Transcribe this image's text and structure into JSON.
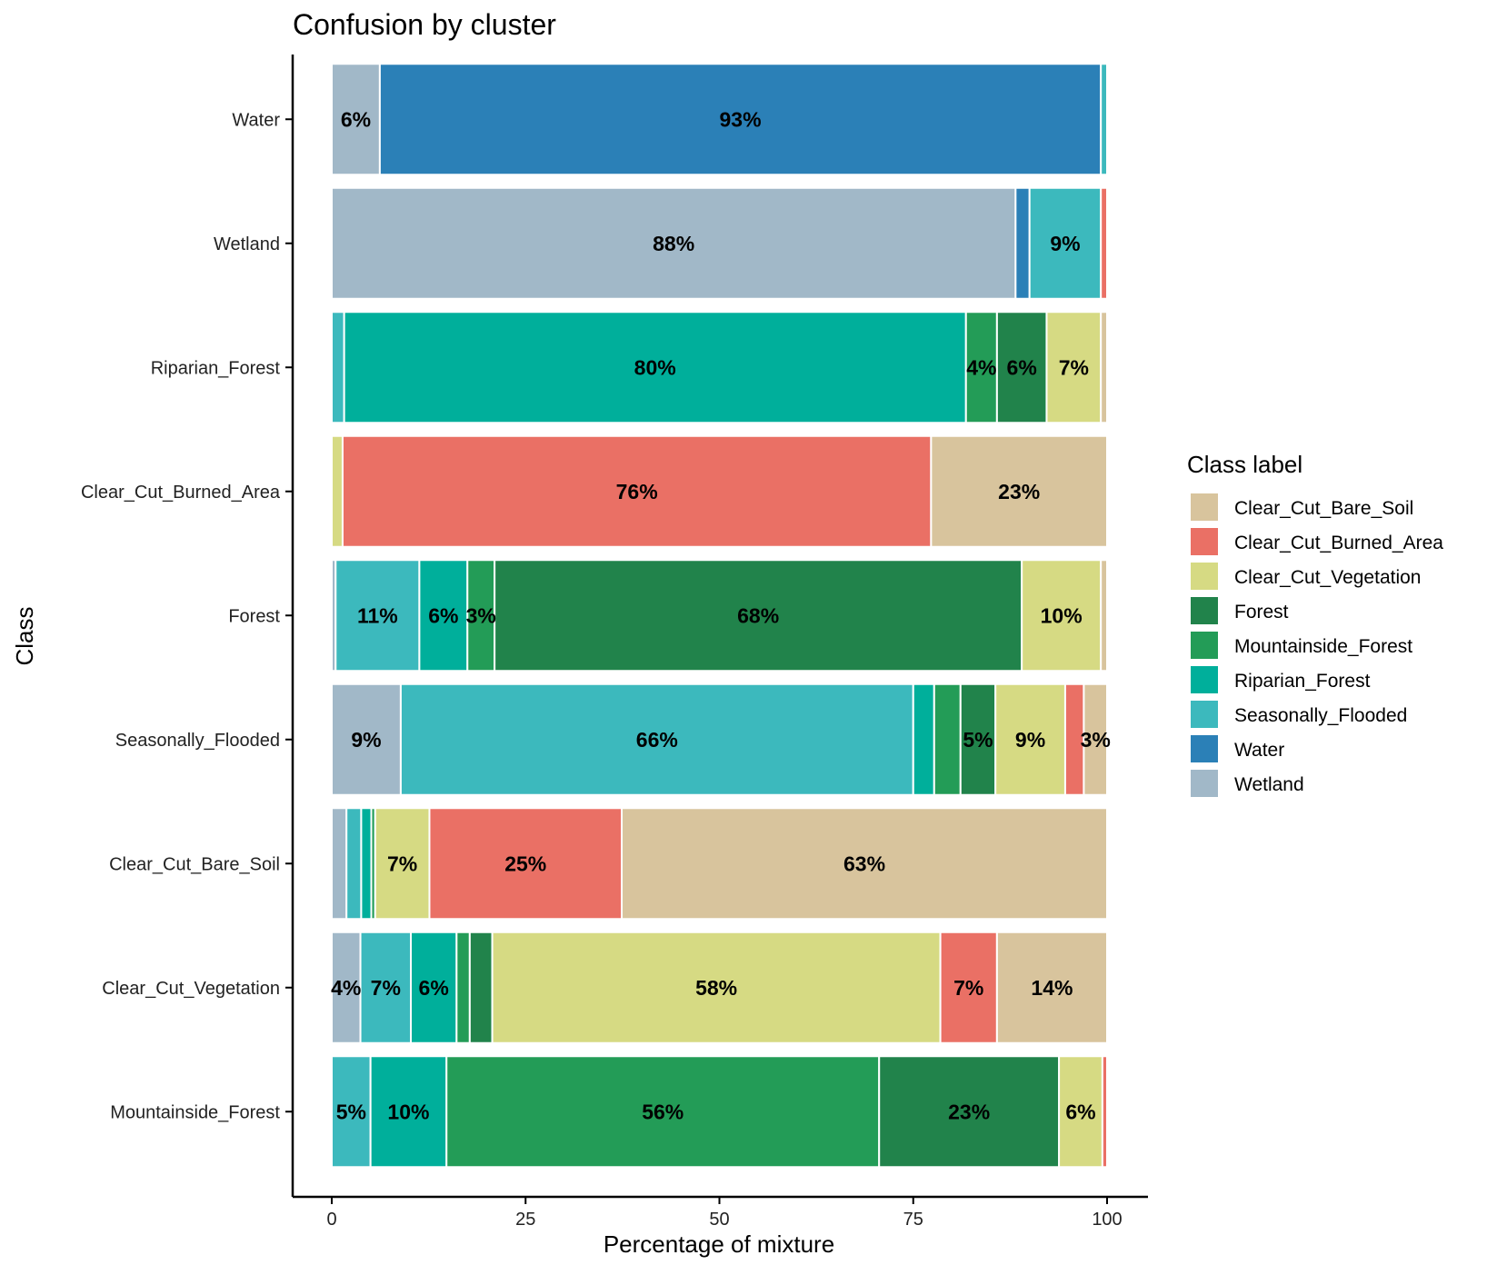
{
  "chart_data": {
    "type": "bar",
    "orientation": "horizontal",
    "stacked": true,
    "title": "Confusion by cluster",
    "xlabel": "Percentage of mixture",
    "ylabel": "Class",
    "xlim": [
      0,
      100
    ],
    "xticks": [
      0,
      25,
      50,
      75,
      100
    ],
    "legend_title": "Class label",
    "legend_position": "right",
    "categories": [
      "Water",
      "Wetland",
      "Riparian_Forest",
      "Clear_Cut_Burned_Area",
      "Forest",
      "Seasonally_Flooded",
      "Clear_Cut_Bare_Soil",
      "Clear_Cut_Vegetation",
      "Mountainside_Forest"
    ],
    "classes": [
      {
        "name": "Clear_Cut_Bare_Soil",
        "color": "#D8C49D"
      },
      {
        "name": "Clear_Cut_Burned_Area",
        "color": "#EA7065"
      },
      {
        "name": "Clear_Cut_Vegetation",
        "color": "#D6DA83"
      },
      {
        "name": "Forest",
        "color": "#21834B"
      },
      {
        "name": "Mountainside_Forest",
        "color": "#239C57"
      },
      {
        "name": "Riparian_Forest",
        "color": "#00AF9B"
      },
      {
        "name": "Seasonally_Flooded",
        "color": "#3CB9BD"
      },
      {
        "name": "Water",
        "color": "#2B80B7"
      },
      {
        "name": "Wetland",
        "color": "#A1B8C8"
      }
    ],
    "bars": [
      {
        "category": "Water",
        "segments": [
          {
            "class": "Wetland",
            "value": 6.2,
            "label": "6%"
          },
          {
            "class": "Water",
            "value": 93.0,
            "label": "93%"
          },
          {
            "class": "Seasonally_Flooded",
            "value": 0.8,
            "label": ""
          }
        ]
      },
      {
        "category": "Wetland",
        "segments": [
          {
            "class": "Wetland",
            "value": 88.2,
            "label": "88%"
          },
          {
            "class": "Water",
            "value": 1.8,
            "label": ""
          },
          {
            "class": "Seasonally_Flooded",
            "value": 9.2,
            "label": "9%"
          },
          {
            "class": "Clear_Cut_Burned_Area",
            "value": 0.8,
            "label": ""
          }
        ]
      },
      {
        "category": "Riparian_Forest",
        "segments": [
          {
            "class": "Seasonally_Flooded",
            "value": 1.6,
            "label": ""
          },
          {
            "class": "Riparian_Forest",
            "value": 80.2,
            "label": "80%"
          },
          {
            "class": "Mountainside_Forest",
            "value": 4.0,
            "label": "4%"
          },
          {
            "class": "Forest",
            "value": 6.4,
            "label": "6%"
          },
          {
            "class": "Clear_Cut_Vegetation",
            "value": 7.0,
            "label": "7%"
          },
          {
            "class": "Clear_Cut_Bare_Soil",
            "value": 0.8,
            "label": ""
          }
        ]
      },
      {
        "category": "Clear_Cut_Burned_Area",
        "segments": [
          {
            "class": "Clear_Cut_Vegetation",
            "value": 1.4,
            "label": ""
          },
          {
            "class": "Clear_Cut_Burned_Area",
            "value": 75.9,
            "label": "76%"
          },
          {
            "class": "Clear_Cut_Bare_Soil",
            "value": 22.7,
            "label": "23%"
          }
        ]
      },
      {
        "category": "Forest",
        "segments": [
          {
            "class": "Wetland",
            "value": 0.5,
            "label": ""
          },
          {
            "class": "Seasonally_Flooded",
            "value": 10.8,
            "label": "11%"
          },
          {
            "class": "Riparian_Forest",
            "value": 6.2,
            "label": "6%"
          },
          {
            "class": "Mountainside_Forest",
            "value": 3.5,
            "label": "3%"
          },
          {
            "class": "Forest",
            "value": 68.0,
            "label": "68%"
          },
          {
            "class": "Clear_Cut_Vegetation",
            "value": 10.2,
            "label": "10%"
          },
          {
            "class": "Clear_Cut_Bare_Soil",
            "value": 0.8,
            "label": ""
          }
        ]
      },
      {
        "category": "Seasonally_Flooded",
        "segments": [
          {
            "class": "Wetland",
            "value": 8.9,
            "label": "9%"
          },
          {
            "class": "Seasonally_Flooded",
            "value": 66.1,
            "label": "66%"
          },
          {
            "class": "Riparian_Forest",
            "value": 2.7,
            "label": ""
          },
          {
            "class": "Mountainside_Forest",
            "value": 3.4,
            "label": ""
          },
          {
            "class": "Forest",
            "value": 4.5,
            "label": "5%"
          },
          {
            "class": "Clear_Cut_Vegetation",
            "value": 9.0,
            "label": "9%"
          },
          {
            "class": "Clear_Cut_Burned_Area",
            "value": 2.4,
            "label": ""
          },
          {
            "class": "Clear_Cut_Bare_Soil",
            "value": 3.0,
            "label": "3%"
          }
        ]
      },
      {
        "category": "Clear_Cut_Bare_Soil",
        "segments": [
          {
            "class": "Wetland",
            "value": 1.9,
            "label": ""
          },
          {
            "class": "Seasonally_Flooded",
            "value": 1.9,
            "label": ""
          },
          {
            "class": "Riparian_Forest",
            "value": 1.3,
            "label": ""
          },
          {
            "class": "Mountainside_Forest",
            "value": 0.5,
            "label": ""
          },
          {
            "class": "Clear_Cut_Vegetation",
            "value": 7.0,
            "label": "7%"
          },
          {
            "class": "Clear_Cut_Burned_Area",
            "value": 24.8,
            "label": "25%"
          },
          {
            "class": "Clear_Cut_Bare_Soil",
            "value": 62.6,
            "label": "63%"
          }
        ]
      },
      {
        "category": "Clear_Cut_Vegetation",
        "segments": [
          {
            "class": "Wetland",
            "value": 3.7,
            "label": "4%"
          },
          {
            "class": "Seasonally_Flooded",
            "value": 6.5,
            "label": "7%"
          },
          {
            "class": "Riparian_Forest",
            "value": 5.9,
            "label": "6%"
          },
          {
            "class": "Mountainside_Forest",
            "value": 1.7,
            "label": ""
          },
          {
            "class": "Forest",
            "value": 2.9,
            "label": ""
          },
          {
            "class": "Clear_Cut_Vegetation",
            "value": 57.8,
            "label": "58%"
          },
          {
            "class": "Clear_Cut_Burned_Area",
            "value": 7.3,
            "label": "7%"
          },
          {
            "class": "Clear_Cut_Bare_Soil",
            "value": 14.2,
            "label": "14%"
          }
        ]
      },
      {
        "category": "Mountainside_Forest",
        "segments": [
          {
            "class": "Seasonally_Flooded",
            "value": 5.0,
            "label": "5%"
          },
          {
            "class": "Riparian_Forest",
            "value": 9.8,
            "label": "10%"
          },
          {
            "class": "Mountainside_Forest",
            "value": 55.8,
            "label": "56%"
          },
          {
            "class": "Forest",
            "value": 23.2,
            "label": "23%"
          },
          {
            "class": "Clear_Cut_Vegetation",
            "value": 5.6,
            "label": "6%"
          },
          {
            "class": "Clear_Cut_Burned_Area",
            "value": 0.6,
            "label": ""
          }
        ]
      }
    ]
  }
}
